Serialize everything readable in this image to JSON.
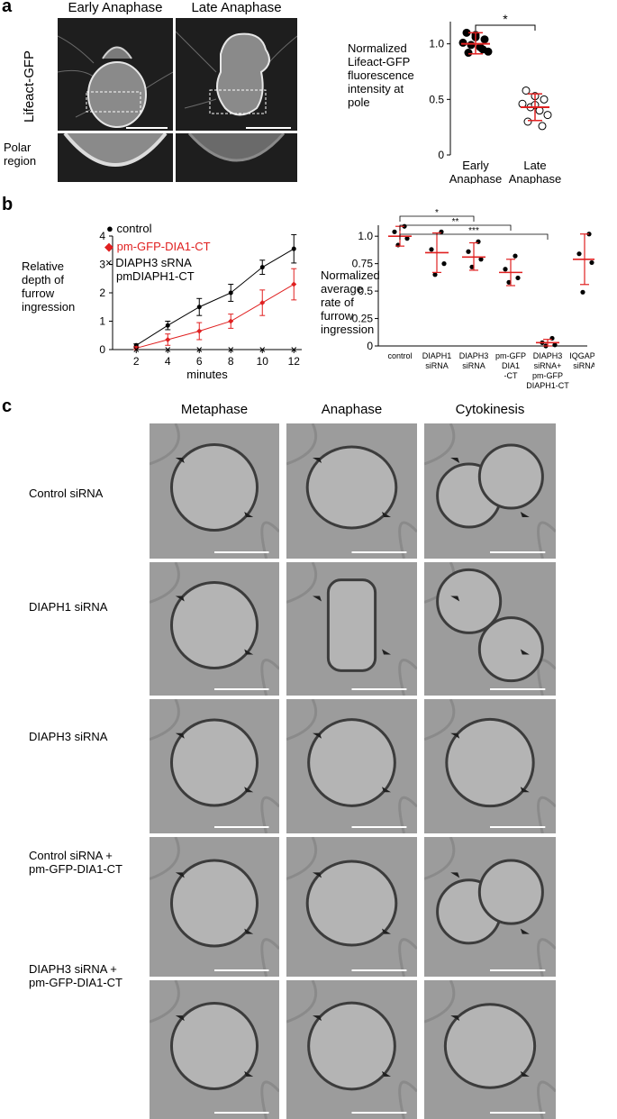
{
  "panels": {
    "a": "a",
    "b": "b",
    "c": "c"
  },
  "panel_a": {
    "col_titles": [
      "Early Anaphase",
      "Late Anaphase"
    ],
    "row_label": "Lifeact-GFP",
    "sub_label": "Polar region",
    "colors": {
      "micro_bg": "#1e1e1e",
      "cell": "#c8c8c8"
    }
  },
  "panel_b": {
    "legend": {
      "control": "control",
      "dia": "pm-GFP-DIA1-CT",
      "diaph3_l1": "DIAPH3 sRNA",
      "diaph3_l2": "pmDIAPH1-CT"
    },
    "colors": {
      "control": "#000000",
      "dia": "#e02020",
      "diaph3": "#000000"
    }
  },
  "panel_c": {
    "col_titles": [
      "Metaphase",
      "Anaphase",
      "Cytokinesis"
    ],
    "rows": [
      {
        "label_l1": "Control siRNA",
        "label_l2": ""
      },
      {
        "label_l1": "DIAPH1 siRNA",
        "label_l2": ""
      },
      {
        "label_l1": "DIAPH3 siRNA",
        "label_l2": ""
      },
      {
        "label_l1": "Control siRNA +",
        "label_l2": "pm-GFP-DIA1-CT"
      },
      {
        "label_l1": "DIAPH3 siRNA +",
        "label_l2": "pm-GFP-DIA1-CT"
      }
    ],
    "colors": {
      "bg": "#9c9c9c",
      "cell": "#b4b4b4",
      "edge": "#3c3c3c"
    }
  },
  "chart_data": [
    {
      "type": "scatter",
      "title": "",
      "ylabel_lines": [
        "Normalized",
        "Lifeact-GFP",
        "fluorescence",
        "intensity at",
        "pole"
      ],
      "categories": [
        [
          "Early",
          "Anaphase"
        ],
        [
          "Late",
          "Anaphase"
        ]
      ],
      "ylim": [
        0,
        1.2
      ],
      "yticks": [
        "0",
        "0.5",
        "1.0"
      ],
      "yticks_values": [
        0,
        0.5,
        1.0
      ],
      "significance": "*",
      "series": [
        {
          "name": "",
          "category": 0,
          "fill": "filled",
          "values": [
            1.1,
            1.08,
            1.04,
            1.01,
            0.99,
            0.97,
            0.93,
            0.92,
            0.95,
            1.06
          ],
          "mean": 1.0,
          "sd_low": 0.91,
          "sd_high": 1.1
        },
        {
          "name": "",
          "category": 1,
          "fill": "open",
          "values": [
            0.58,
            0.53,
            0.5,
            0.46,
            0.43,
            0.4,
            0.36,
            0.3,
            0.26,
            0.45
          ],
          "mean": 0.43,
          "sd_low": 0.31,
          "sd_high": 0.55
        }
      ],
      "colors": {
        "mean": "#e02020"
      }
    },
    {
      "type": "line",
      "title": "",
      "xlabel": "minutes",
      "ylabel_lines": [
        "Relative",
        "depth of",
        "furrow",
        "ingression"
      ],
      "x": [
        2,
        4,
        6,
        8,
        10,
        12
      ],
      "xticks": [
        "2",
        "4",
        "6",
        "8",
        "10",
        "12"
      ],
      "ylim": [
        0,
        4
      ],
      "yticks": [
        "0",
        "1",
        "2",
        "3",
        "4"
      ],
      "series": [
        {
          "name": "control",
          "values": [
            0.15,
            0.85,
            1.5,
            2.0,
            2.9,
            3.55
          ],
          "err": [
            0.05,
            0.15,
            0.3,
            0.3,
            0.25,
            0.5
          ]
        },
        {
          "name": "pm-GFP-DIA1-CT",
          "values": [
            0.05,
            0.35,
            0.65,
            1.0,
            1.65,
            2.3
          ],
          "err": [
            0.05,
            0.2,
            0.3,
            0.25,
            0.45,
            0.55
          ]
        },
        {
          "name": "DIAPH3 sRNA pmDIAPH1-CT",
          "values": [
            0,
            0,
            0,
            0,
            0,
            0
          ],
          "err": [
            0,
            0,
            0,
            0,
            0,
            0
          ]
        }
      ]
    },
    {
      "type": "scatter",
      "title": "",
      "ylabel_lines": [
        "Normalized",
        "average",
        "rate of",
        "furrow",
        "ingression"
      ],
      "categories": [
        [
          "control"
        ],
        [
          "DIAPH1",
          "siRNA"
        ],
        [
          "DIAPH3",
          "siRNA"
        ],
        [
          "pm-GFP",
          "DIA1",
          "-CT"
        ],
        [
          "DIAPH3",
          "siRNA+",
          "pm-GFP",
          "DIAPH1-CT"
        ],
        [
          "IQGAP1",
          "siRNA"
        ]
      ],
      "ylim": [
        0,
        1.1
      ],
      "yticks": [
        "0",
        "0.25",
        "0.5",
        "0.75",
        "1.0"
      ],
      "yticks_values": [
        0,
        0.25,
        0.5,
        0.75,
        1.0
      ],
      "significance": [
        {
          "from": 0,
          "to": 2,
          "label": "*"
        },
        {
          "from": 0,
          "to": 3,
          "label": "**"
        },
        {
          "from": 0,
          "to": 4,
          "label": "***"
        }
      ],
      "series": [
        {
          "category": 0,
          "values": [
            1.09,
            1.04,
            0.98,
            0.92
          ],
          "mean": 1.0,
          "sd_low": 0.91,
          "sd_high": 1.09
        },
        {
          "category": 1,
          "values": [
            1.04,
            0.88,
            0.75,
            0.65
          ],
          "mean": 0.85,
          "sd_low": 0.67,
          "sd_high": 1.03
        },
        {
          "category": 2,
          "values": [
            0.95,
            0.86,
            0.79,
            0.72
          ],
          "mean": 0.81,
          "sd_low": 0.69,
          "sd_high": 0.94
        },
        {
          "category": 3,
          "values": [
            0.82,
            0.7,
            0.62,
            0.58
          ],
          "mean": 0.67,
          "sd_low": 0.55,
          "sd_high": 0.79
        },
        {
          "category": 4,
          "values": [
            0.07,
            0.03,
            0.01,
            0.0
          ],
          "mean": 0.03,
          "sd_low": 0.0,
          "sd_high": 0.06
        },
        {
          "category": 5,
          "values": [
            1.02,
            0.84,
            0.76,
            0.49
          ],
          "mean": 0.79,
          "sd_low": 0.56,
          "sd_high": 1.02
        }
      ],
      "colors": {
        "mean": "#e02020"
      }
    }
  ]
}
